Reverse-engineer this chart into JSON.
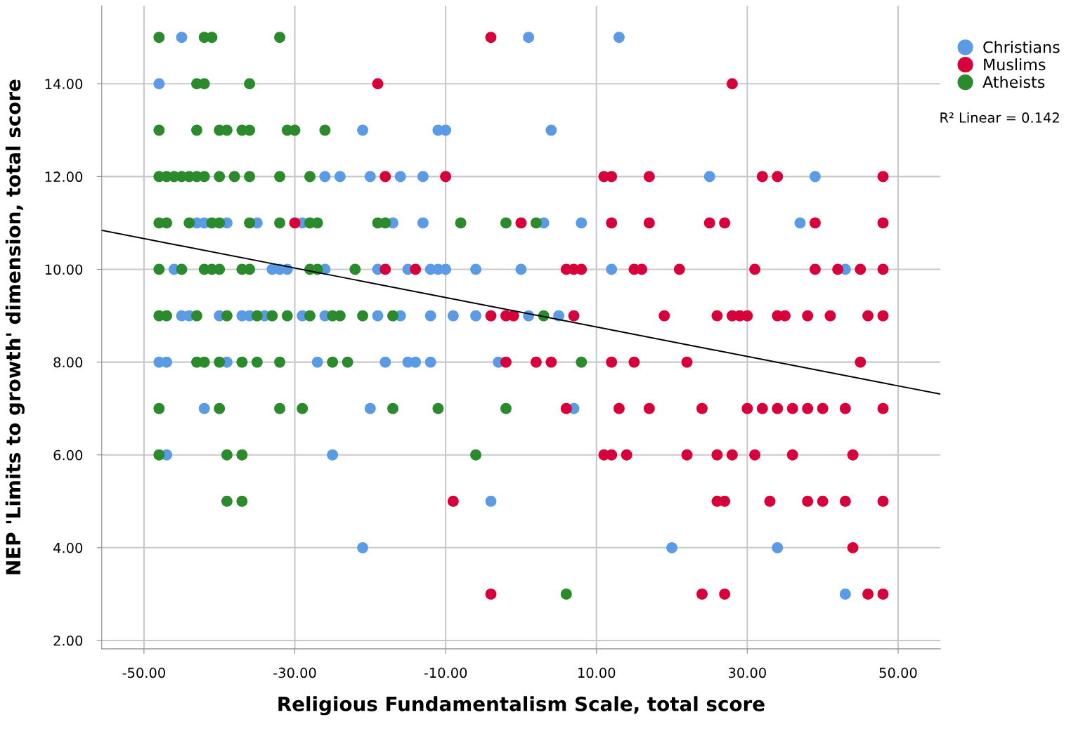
{
  "chart_data": {
    "type": "scatter",
    "xlabel": "Religious Fundamentalism Scale, total score",
    "ylabel": "NEP 'Limits to growth' dimension, total score",
    "xlim": [
      -55.6,
      55.6
    ],
    "ylim": [
      1.82,
      15.68
    ],
    "xticks": [
      {
        "value": -50,
        "label": "-50.00"
      },
      {
        "value": -30,
        "label": "-30.00"
      },
      {
        "value": -10,
        "label": "-10.00"
      },
      {
        "value": 10,
        "label": "10.00"
      },
      {
        "value": 30,
        "label": "30.00"
      },
      {
        "value": 50,
        "label": "50.00"
      }
    ],
    "yticks": [
      {
        "value": 2,
        "label": "2.00"
      },
      {
        "value": 4,
        "label": "4.00"
      },
      {
        "value": 6,
        "label": "6.00"
      },
      {
        "value": 8,
        "label": "8.00"
      },
      {
        "value": 10,
        "label": "10.00"
      },
      {
        "value": 12,
        "label": "12.00"
      },
      {
        "value": 14,
        "label": "14.00"
      }
    ],
    "grid": true,
    "legend": "top right",
    "marker": "circle",
    "annotations": [
      "R² Linear = 0.142"
    ],
    "series": [
      {
        "name": "Christians",
        "color": "#5b9be6",
        "x": [
          -45,
          1,
          13,
          -48,
          -21,
          -11,
          -10,
          4,
          -26,
          -24,
          -20,
          -16,
          -13,
          25,
          39,
          -43,
          -42,
          -39,
          -35,
          -29,
          -17,
          -13,
          3,
          8,
          37,
          -46,
          -33,
          -32,
          -31,
          -26,
          -19,
          -15,
          -12,
          -11,
          -10,
          -6,
          0,
          12,
          43,
          -45,
          -44,
          -40,
          -37,
          -36,
          -34,
          -29,
          -26,
          -19,
          -16,
          -12,
          -9,
          -6,
          1,
          5,
          -48,
          -47,
          -39,
          -27,
          -18,
          -15,
          -14,
          -12,
          -3,
          -42,
          -20,
          7,
          -47,
          -25,
          -4,
          -21,
          20,
          34,
          43
        ],
        "values": [
          15,
          15,
          15,
          14,
          13,
          13,
          13,
          13,
          12,
          12,
          12,
          12,
          12,
          12,
          12,
          11,
          11,
          11,
          11,
          11,
          11,
          11,
          11,
          11,
          11,
          10,
          10,
          10,
          10,
          10,
          10,
          10,
          10,
          10,
          10,
          10,
          10,
          10,
          10,
          9,
          9,
          9,
          9,
          9,
          9,
          9,
          9,
          9,
          9,
          9,
          9,
          9,
          9,
          9,
          8,
          8,
          8,
          8,
          8,
          8,
          8,
          8,
          8,
          7,
          7,
          7,
          6,
          6,
          5,
          4,
          4,
          4,
          3
        ]
      },
      {
        "name": "Muslims",
        "color": "#d8003a",
        "x": [
          -4,
          -19,
          28,
          -18,
          -10,
          11,
          12,
          17,
          32,
          34,
          48,
          -30,
          0,
          12,
          17,
          25,
          27,
          39,
          48,
          -18,
          -14,
          6,
          7,
          8,
          15,
          16,
          21,
          31,
          39,
          42,
          45,
          48,
          -4,
          -2,
          -1,
          7,
          19,
          26,
          28,
          29,
          30,
          34,
          35,
          38,
          41,
          46,
          48,
          -2,
          2,
          4,
          12,
          15,
          22,
          45,
          6,
          13,
          17,
          24,
          30,
          32,
          34,
          36,
          38,
          40,
          43,
          48,
          11,
          12,
          14,
          22,
          26,
          28,
          31,
          36,
          44,
          -9,
          26,
          27,
          33,
          38,
          40,
          43,
          48,
          44,
          -4,
          24,
          27,
          46,
          48
        ],
        "values": [
          15,
          14,
          14,
          12,
          12,
          12,
          12,
          12,
          12,
          12,
          12,
          11,
          11,
          11,
          11,
          11,
          11,
          11,
          11,
          10,
          10,
          10,
          10,
          10,
          10,
          10,
          10,
          10,
          10,
          10,
          10,
          10,
          9,
          9,
          9,
          9,
          9,
          9,
          9,
          9,
          9,
          9,
          9,
          9,
          9,
          9,
          9,
          8,
          8,
          8,
          8,
          8,
          8,
          8,
          7,
          7,
          7,
          7,
          7,
          7,
          7,
          7,
          7,
          7,
          7,
          7,
          6,
          6,
          6,
          6,
          6,
          6,
          6,
          6,
          6,
          5,
          5,
          5,
          5,
          5,
          5,
          5,
          5,
          4,
          3,
          3,
          3,
          3,
          3
        ]
      },
      {
        "name": "Atheists",
        "color": "#2b8a2b",
        "x": [
          -48,
          -42,
          -41,
          -32,
          -43,
          -42,
          -36,
          -48,
          -43,
          -40,
          -39,
          -37,
          -36,
          -31,
          -30,
          -26,
          -48,
          -47,
          -46,
          -45,
          -44,
          -43,
          -42,
          -40,
          -38,
          -36,
          -32,
          -28,
          -48,
          -47,
          -44,
          -41,
          -40,
          -36,
          -32,
          -28,
          -27,
          -19,
          -18,
          -8,
          -2,
          2,
          -48,
          -45,
          -42,
          -41,
          -40,
          -37,
          -36,
          -28,
          -27,
          -22,
          -48,
          -47,
          -43,
          -39,
          -35,
          -33,
          -31,
          -28,
          -25,
          -24,
          -21,
          -17,
          3,
          -43,
          -42,
          -40,
          -37,
          -35,
          -32,
          -25,
          -23,
          8,
          -48,
          -40,
          -32,
          -29,
          -17,
          -11,
          -2,
          -48,
          -39,
          -37,
          -6,
          -39,
          -37,
          6
        ],
        "values": [
          15,
          15,
          15,
          15,
          14,
          14,
          14,
          13,
          13,
          13,
          13,
          13,
          13,
          13,
          13,
          13,
          12,
          12,
          12,
          12,
          12,
          12,
          12,
          12,
          12,
          12,
          12,
          12,
          11,
          11,
          11,
          11,
          11,
          11,
          11,
          11,
          11,
          11,
          11,
          11,
          11,
          11,
          10,
          10,
          10,
          10,
          10,
          10,
          10,
          10,
          10,
          10,
          9,
          9,
          9,
          9,
          9,
          9,
          9,
          9,
          9,
          9,
          9,
          9,
          9,
          8,
          8,
          8,
          8,
          8,
          8,
          8,
          8,
          8,
          7,
          7,
          7,
          7,
          7,
          7,
          7,
          6,
          6,
          6,
          6,
          5,
          5,
          3
        ]
      },
      {
        "type": "line",
        "color": "#000000",
        "line_style": "solid",
        "marker": "none",
        "x": [
          -55.6,
          55.6
        ],
        "values": [
          10.84,
          7.31
        ]
      }
    ]
  }
}
